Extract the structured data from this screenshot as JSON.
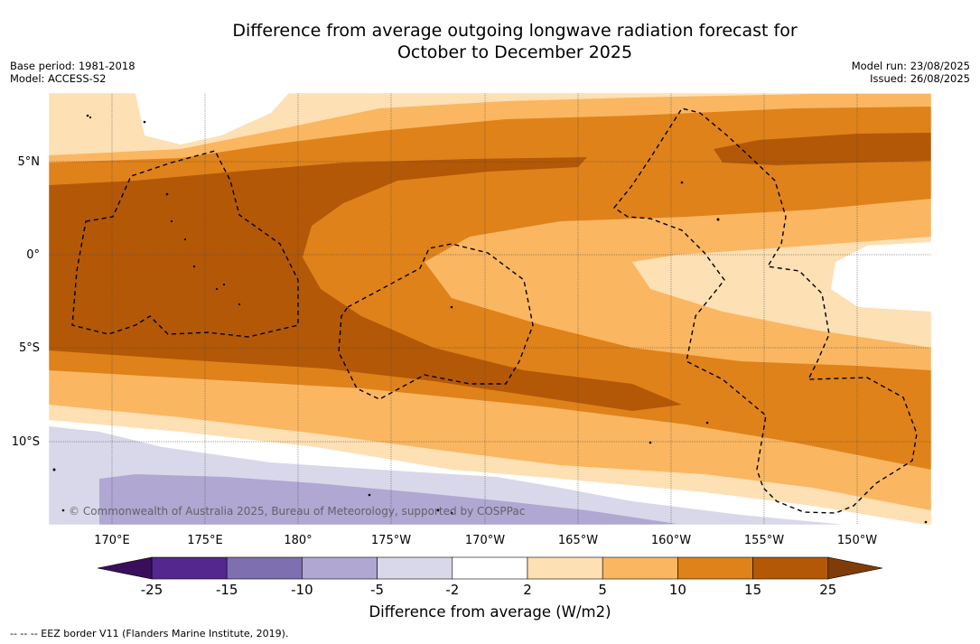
{
  "title_line1": "Difference from average outgoing longwave radiation forecast for",
  "title_line2": "October to December 2025",
  "base_period": "Base period: 1981-2018",
  "model": "Model: ACCESS-S2",
  "model_run": "Model run: 23/08/2025",
  "issued": "Issued: 26/08/2025",
  "copyright": "© Commonwealth of Australia 2025, Bureau of Meteorology, supported by COSPPac",
  "lat_labels": [
    "5°N",
    "0°",
    "5°S",
    "10°S"
  ],
  "lon_labels": [
    "170°E",
    "175°E",
    "180°",
    "175°W",
    "170°W",
    "165°W",
    "160°W",
    "155°W",
    "150°W"
  ],
  "colorbar": {
    "ticks": [
      "-25",
      "-15",
      "-10",
      "-5",
      "-2",
      "2",
      "5",
      "10",
      "15",
      "25"
    ],
    "colors": [
      "#3b0e5c",
      "#54278f",
      "#7e6fb0",
      "#b0a8d2",
      "#d8d8ea",
      "#ffffff",
      "#fde0b4",
      "#fbb661",
      "#e0821a",
      "#b35806",
      "#7f3b08"
    ]
  },
  "colorbar_title": "Difference from average (W/m2)",
  "footnote": "-- -- -- EEZ border V11 (Flanders Marine Institute, 2019)."
}
